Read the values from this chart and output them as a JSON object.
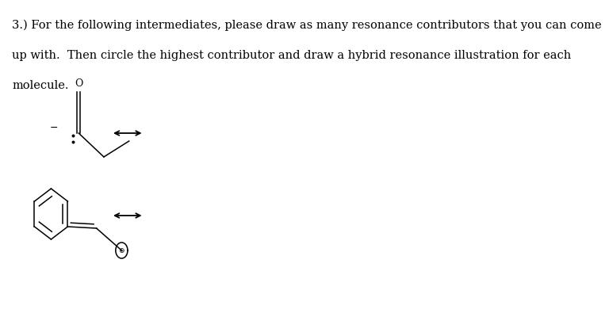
{
  "title_line1": "3.) For the following intermediates, please draw as many resonance contributors that you can come",
  "title_line2": "up with.  Then circle the highest contributor and draw a hybrid resonance illustration for each",
  "title_line3": "molecule.",
  "background_color": "#ffffff",
  "text_color": "#000000",
  "font_size_text": 10.5
}
